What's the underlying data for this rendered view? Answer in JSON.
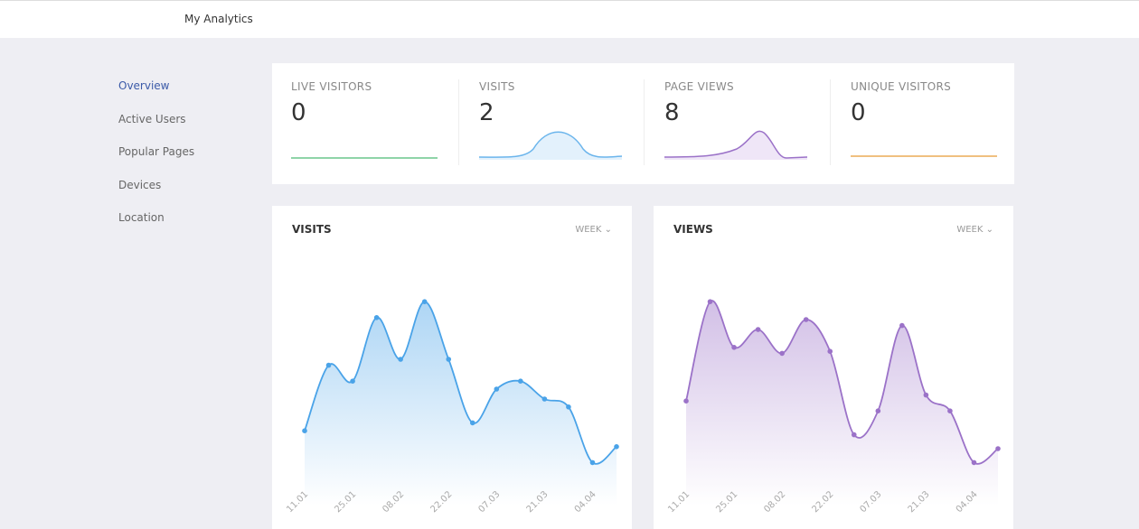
{
  "header": {
    "title": "My Analytics"
  },
  "sidebar": {
    "items": [
      "Overview",
      "Active Users",
      "Popular Pages",
      "Devices",
      "Location"
    ]
  },
  "stats": [
    {
      "label": "LIVE VISITORS",
      "value": 0
    },
    {
      "label": "VISITS",
      "value": 2
    },
    {
      "label": "PAGE VIEWS",
      "value": 8
    },
    {
      "label": "UNIQUE VISITORS",
      "value": 0
    }
  ],
  "charts": [
    {
      "type": "line",
      "title": "VISITS",
      "period": "WEEK",
      "color": "#4aa3e8",
      "categories": [
        "11.01",
        null,
        "25.01",
        null,
        "08.02",
        null,
        "22.02",
        null,
        "07.03",
        null,
        "21.03",
        null,
        "04.04",
        null
      ],
      "values": [
        24,
        57,
        49,
        81,
        60,
        89,
        60,
        28,
        45,
        49,
        40,
        36,
        8,
        16
      ],
      "ylim": [
        0,
        100
      ]
    },
    {
      "type": "line",
      "title": "VIEWS",
      "period": "WEEK",
      "color": "#9b72c8",
      "categories": [
        "11.01",
        null,
        "25.01",
        null,
        "08.02",
        null,
        "22.02",
        null,
        "07.03",
        null,
        "21.03",
        null,
        "04.04",
        null
      ],
      "values": [
        39,
        89,
        66,
        75,
        63,
        80,
        64,
        22,
        34,
        77,
        42,
        34,
        8,
        15
      ],
      "ylim": [
        0,
        100
      ]
    }
  ]
}
